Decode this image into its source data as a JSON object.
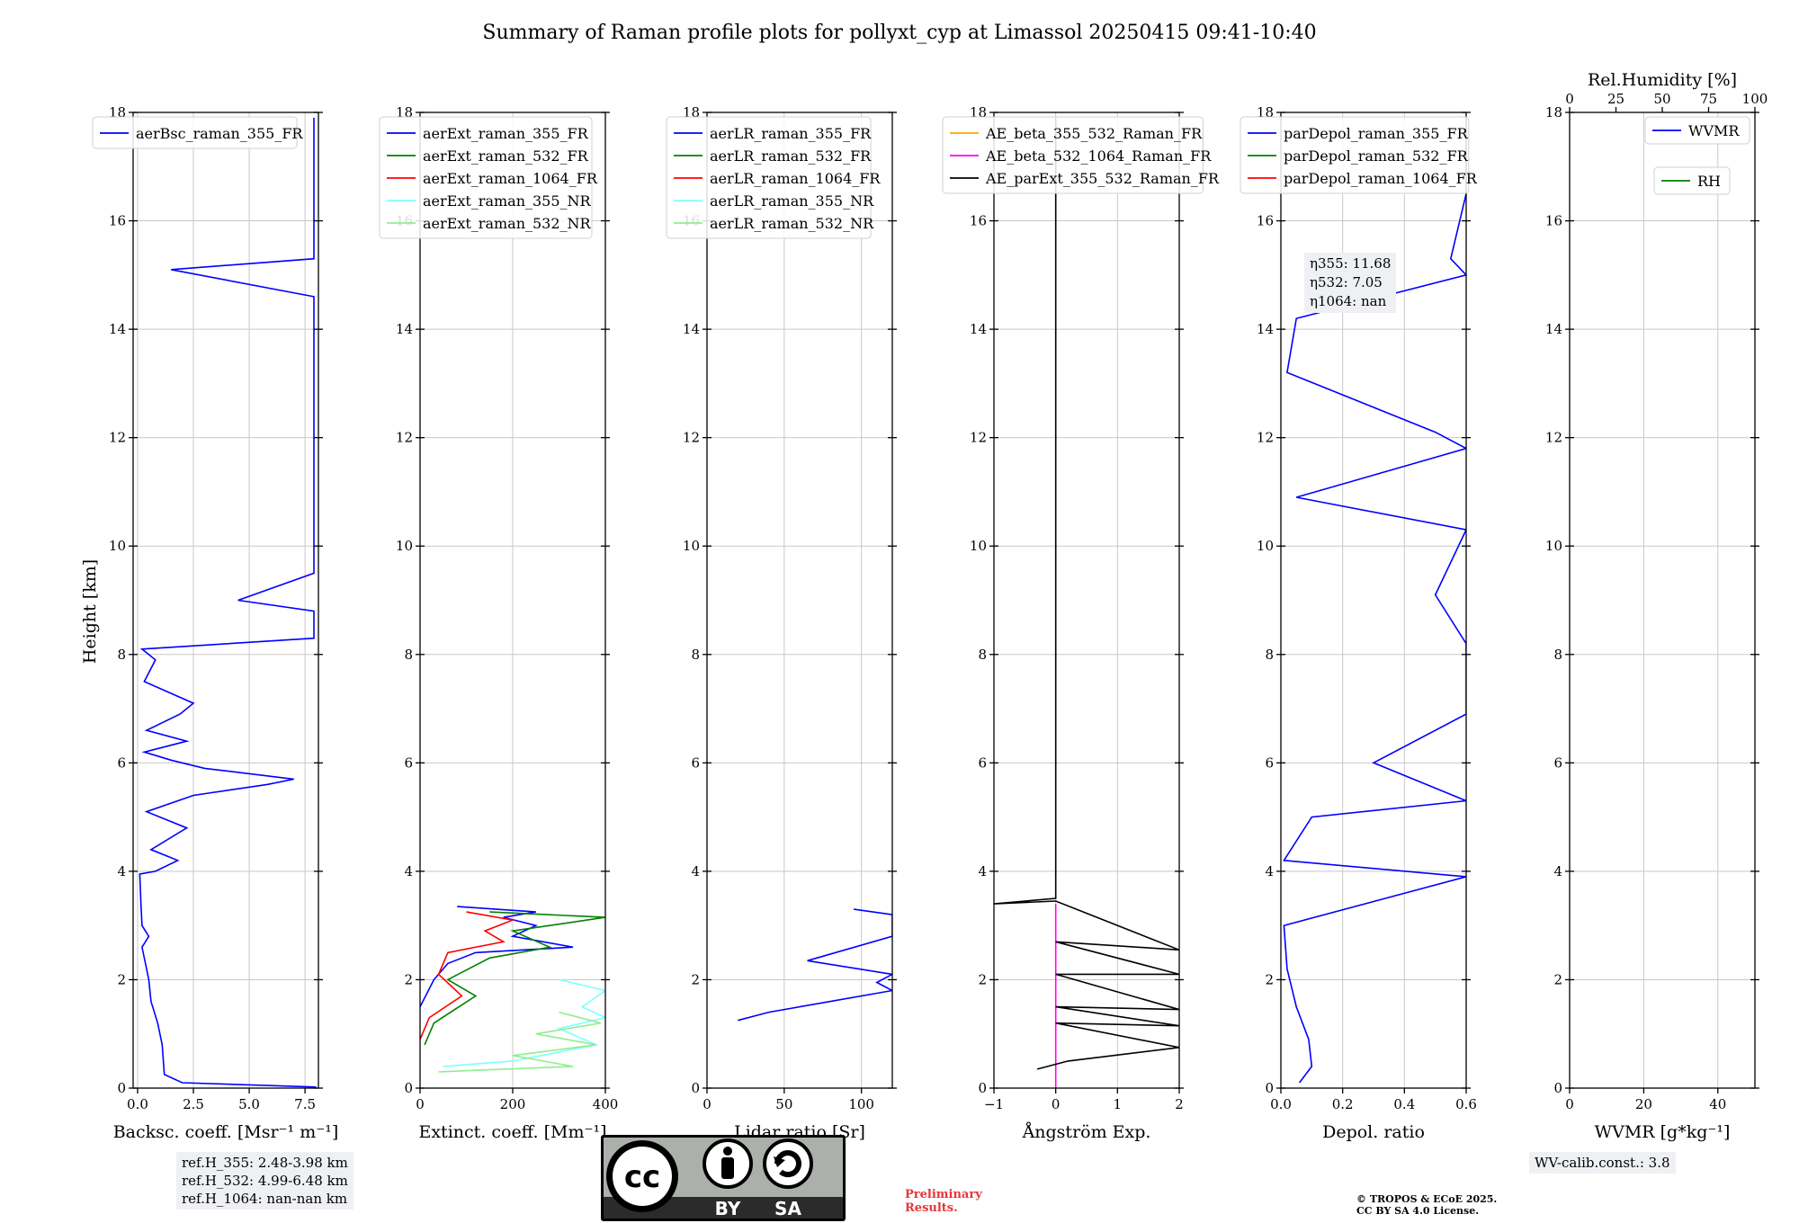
{
  "figure": {
    "title": "Summary of Raman profile plots for pollyxt_cyp at Limassol 20250415 09:41-10:40",
    "ylabel": "Height [km]",
    "ref_heights": [
      "ref.H_355: 2.48-3.98 km",
      "ref.H_532: 4.99-6.48 km",
      "ref.H_1064: nan-nan km"
    ],
    "eta": [
      "η355: 11.68",
      "η532: 7.05",
      "η1064: nan"
    ],
    "wv_calib": "WV-calib.const.: 3.8",
    "preliminary": [
      "Preliminary",
      "Results."
    ],
    "copyright": [
      "© TROPOS & ECoE 2025.",
      "CC BY SA 4.0 License."
    ],
    "license_badge": {
      "cc": "cc",
      "by": "BY",
      "sa": "SA"
    }
  },
  "chart_data": [
    {
      "type": "line",
      "id": "backscatter",
      "xlabel": "Backsc. coeff. [Msr⁻¹ m⁻¹]",
      "ylabel": "Height [km]",
      "xlim": [
        -0.2,
        8.1
      ],
      "ylim": [
        0,
        18
      ],
      "xticks": [
        "0.0",
        "2.5",
        "5.0",
        "7.5"
      ],
      "xtick_values": [
        0,
        2.5,
        5,
        7.5
      ],
      "yticks": [
        "0",
        "2",
        "4",
        "6",
        "8",
        "10",
        "12",
        "14",
        "16",
        "18"
      ],
      "grid": true,
      "legend_position": "upper-left",
      "series": [
        {
          "name": "aerBsc_raman_355_FR",
          "color": "#0000ff",
          "points": [
            [
              8.0,
              0.02
            ],
            [
              2.0,
              0.1
            ],
            [
              1.2,
              0.25
            ],
            [
              1.1,
              0.8
            ],
            [
              0.9,
              1.2
            ],
            [
              0.6,
              1.6
            ],
            [
              0.5,
              2.0
            ],
            [
              0.35,
              2.3
            ],
            [
              0.2,
              2.6
            ],
            [
              0.5,
              2.8
            ],
            [
              0.2,
              3.0
            ],
            [
              0.15,
              3.4
            ],
            [
              0.1,
              3.95
            ],
            [
              0.8,
              4.0
            ],
            [
              1.8,
              4.2
            ],
            [
              0.6,
              4.4
            ],
            [
              2.2,
              4.8
            ],
            [
              0.4,
              5.1
            ],
            [
              2.5,
              5.4
            ],
            [
              5.8,
              5.6
            ],
            [
              7.0,
              5.7
            ],
            [
              3.0,
              5.9
            ],
            [
              1.5,
              6.05
            ],
            [
              0.3,
              6.2
            ],
            [
              2.2,
              6.4
            ],
            [
              0.4,
              6.6
            ],
            [
              1.9,
              6.9
            ],
            [
              2.5,
              7.1
            ],
            [
              0.3,
              7.5
            ],
            [
              0.8,
              7.9
            ],
            [
              0.2,
              8.1
            ],
            [
              7.9,
              8.3
            ],
            [
              7.9,
              8.45
            ],
            [
              7.9,
              8.8
            ],
            [
              4.5,
              9.0
            ],
            [
              7.9,
              9.5
            ],
            [
              7.9,
              9.8
            ],
            [
              7.9,
              10.2
            ],
            [
              7.9,
              10.9
            ],
            [
              7.9,
              11.4
            ],
            [
              7.9,
              11.8
            ],
            [
              7.9,
              12.1
            ],
            [
              7.9,
              12.9
            ],
            [
              7.9,
              14.2
            ],
            [
              7.9,
              14.6
            ],
            [
              1.5,
              15.1
            ],
            [
              7.9,
              15.3
            ],
            [
              7.9,
              15.8
            ],
            [
              7.9,
              17.9
            ]
          ]
        }
      ]
    },
    {
      "type": "line",
      "id": "extinction",
      "xlabel": "Extinct. coeff. [Mm⁻¹]",
      "ylabel": "",
      "xlim": [
        0,
        400
      ],
      "ylim": [
        0,
        18
      ],
      "xticks": [
        "0",
        "200",
        "400"
      ],
      "xtick_values": [
        0,
        200,
        400
      ],
      "yticks": [
        "0",
        "2",
        "4",
        "6",
        "8",
        "10",
        "12",
        "14",
        "16",
        "18"
      ],
      "grid": true,
      "legend_position": "upper-left",
      "series": [
        {
          "name": "aerExt_raman_355_FR",
          "color": "#0000ff",
          "points": [
            [
              0,
              1.5
            ],
            [
              30,
              2.0
            ],
            [
              60,
              2.3
            ],
            [
              120,
              2.5
            ],
            [
              330,
              2.6
            ],
            [
              200,
              2.8
            ],
            [
              250,
              3.0
            ],
            [
              180,
              3.15
            ],
            [
              250,
              3.25
            ],
            [
              80,
              3.35
            ]
          ]
        },
        {
          "name": "aerExt_raman_532_FR",
          "color": "#008000",
          "points": [
            [
              10,
              0.8
            ],
            [
              30,
              1.2
            ],
            [
              120,
              1.7
            ],
            [
              60,
              2.0
            ],
            [
              150,
              2.4
            ],
            [
              280,
              2.6
            ],
            [
              200,
              2.9
            ],
            [
              400,
              3.15
            ],
            [
              150,
              3.25
            ]
          ]
        },
        {
          "name": "aerExt_raman_1064_FR",
          "color": "#ff0000",
          "points": [
            [
              0,
              0.9
            ],
            [
              20,
              1.3
            ],
            [
              90,
              1.7
            ],
            [
              40,
              2.1
            ],
            [
              60,
              2.5
            ],
            [
              180,
              2.7
            ],
            [
              140,
              2.9
            ],
            [
              200,
              3.1
            ],
            [
              100,
              3.25
            ]
          ]
        },
        {
          "name": "aerExt_raman_355_NR",
          "color": "#7fffff",
          "points": [
            [
              50,
              0.4
            ],
            [
              200,
              0.5
            ],
            [
              380,
              0.8
            ],
            [
              300,
              1.1
            ],
            [
              400,
              1.3
            ],
            [
              350,
              1.5
            ],
            [
              400,
              1.8
            ],
            [
              300,
              2.0
            ]
          ]
        },
        {
          "name": "aerExt_raman_532_NR",
          "color": "#90ee90",
          "points": [
            [
              40,
              0.3
            ],
            [
              330,
              0.4
            ],
            [
              200,
              0.6
            ],
            [
              380,
              0.8
            ],
            [
              250,
              1.0
            ],
            [
              390,
              1.2
            ],
            [
              300,
              1.4
            ]
          ]
        }
      ]
    },
    {
      "type": "line",
      "id": "lidar_ratio",
      "xlabel": "Lidar ratio [Sr]",
      "ylabel": "",
      "xlim": [
        0,
        120
      ],
      "ylim": [
        0,
        18
      ],
      "xticks": [
        "0",
        "50",
        "100"
      ],
      "xtick_values": [
        0,
        50,
        100
      ],
      "yticks": [
        "0",
        "2",
        "4",
        "6",
        "8",
        "10",
        "12",
        "14",
        "16",
        "18"
      ],
      "grid": true,
      "legend_position": "upper-left",
      "series": [
        {
          "name": "aerLR_raman_355_FR",
          "color": "#0000ff",
          "points": [
            [
              20,
              1.25
            ],
            [
              40,
              1.4
            ],
            [
              80,
              1.6
            ],
            [
              120,
              1.8
            ],
            [
              110,
              1.95
            ],
            [
              120,
              2.1
            ],
            [
              65,
              2.35
            ],
            [
              120,
              2.8
            ],
            [
              120,
              3.0
            ],
            [
              120,
              3.2
            ],
            [
              95,
              3.3
            ]
          ]
        },
        {
          "name": "aerLR_raman_532_FR",
          "color": "#008000",
          "points": []
        },
        {
          "name": "aerLR_raman_1064_FR",
          "color": "#ff0000",
          "points": []
        },
        {
          "name": "aerLR_raman_355_NR",
          "color": "#7fffff",
          "points": []
        },
        {
          "name": "aerLR_raman_532_NR",
          "color": "#90ee90",
          "points": []
        }
      ]
    },
    {
      "type": "line",
      "id": "angstrom",
      "xlabel": "Ångström Exp.",
      "ylabel": "",
      "xlim": [
        -1,
        2
      ],
      "ylim": [
        0,
        18
      ],
      "xticks": [
        "−1",
        "0",
        "1",
        "2"
      ],
      "xtick_values": [
        -1,
        0,
        1,
        2
      ],
      "yticks": [
        "0",
        "2",
        "4",
        "6",
        "8",
        "10",
        "12",
        "14",
        "16",
        "18"
      ],
      "grid": true,
      "legend_position": "upper-left",
      "series": [
        {
          "name": "AE_beta_355_532_Raman_FR",
          "color": "#ffa500",
          "points": []
        },
        {
          "name": "AE_beta_532_1064_Raman_FR",
          "color": "#ff00ff",
          "points": [
            [
              0,
              0
            ],
            [
              0,
              3.4
            ]
          ]
        },
        {
          "name": "AE_parExt_355_532_Raman_FR",
          "color": "#000000",
          "points": [
            [
              -0.3,
              0.35
            ],
            [
              0.2,
              0.5
            ],
            [
              2.0,
              0.75
            ],
            [
              0,
              1.2
            ],
            [
              2.0,
              1.15
            ],
            [
              0,
              1.5
            ],
            [
              2.0,
              1.45
            ],
            [
              0,
              2.1
            ],
            [
              2.0,
              2.1
            ],
            [
              0,
              2.7
            ],
            [
              2.0,
              2.55
            ],
            [
              0,
              3.45
            ],
            [
              -1.0,
              3.4
            ],
            [
              0,
              3.5
            ],
            [
              0,
              17.9
            ]
          ]
        }
      ]
    },
    {
      "type": "line",
      "id": "depolarization",
      "xlabel": "Depol. ratio",
      "ylabel": "",
      "xlim": [
        0,
        0.6
      ],
      "ylim": [
        0,
        18
      ],
      "xticks": [
        "0.0",
        "0.2",
        "0.4",
        "0.6"
      ],
      "xtick_values": [
        0,
        0.2,
        0.4,
        0.6
      ],
      "yticks": [
        "0",
        "2",
        "4",
        "6",
        "8",
        "10",
        "12",
        "14",
        "16",
        "18"
      ],
      "grid": true,
      "legend_position": "upper-left",
      "series": [
        {
          "name": "parDepol_raman_355_FR",
          "color": "#0000ff",
          "points": [
            [
              0.06,
              0.1
            ],
            [
              0.1,
              0.4
            ],
            [
              0.09,
              0.9
            ],
            [
              0.05,
              1.5
            ],
            [
              0.02,
              2.2
            ],
            [
              0.01,
              3.0
            ],
            [
              0.6,
              3.9
            ],
            [
              0.01,
              4.2
            ],
            [
              0.1,
              5.0
            ],
            [
              0.6,
              5.3
            ],
            [
              0.3,
              6.0
            ],
            [
              0.6,
              6.9
            ],
            [
              0.6,
              7.2
            ],
            [
              0.6,
              8.0
            ],
            [
              0.6,
              8.2
            ],
            [
              0.5,
              9.1
            ],
            [
              0.6,
              10.3
            ],
            [
              0.05,
              10.9
            ],
            [
              0.6,
              11.8
            ],
            [
              0.5,
              12.1
            ],
            [
              0.02,
              13.2
            ],
            [
              0.05,
              14.2
            ],
            [
              0.6,
              15.0
            ],
            [
              0.55,
              15.3
            ],
            [
              0.6,
              16.5
            ],
            [
              0.6,
              17.3
            ],
            [
              0.6,
              17.9
            ]
          ]
        },
        {
          "name": "parDepol_raman_532_FR",
          "color": "#008000",
          "points": []
        },
        {
          "name": "parDepol_raman_1064_FR",
          "color": "#ff0000",
          "points": []
        }
      ]
    },
    {
      "type": "line",
      "id": "water_vapor",
      "xlabel": "WVMR [g*kg⁻¹]",
      "ylabel": "",
      "xlim": [
        0,
        50
      ],
      "ylim": [
        0,
        18
      ],
      "xticks": [
        "0",
        "20",
        "40"
      ],
      "xtick_values": [
        0,
        20,
        40
      ],
      "yticks": [
        "0",
        "2",
        "4",
        "6",
        "8",
        "10",
        "12",
        "14",
        "16",
        "18"
      ],
      "top_axis_label": "Rel.Humidity [%]",
      "top_xlim": [
        0,
        100
      ],
      "top_xticks": [
        "0",
        "25",
        "50",
        "75",
        "100"
      ],
      "top_xtick_values": [
        0,
        25,
        50,
        75,
        100
      ],
      "grid": true,
      "legend_position": "upper-right",
      "series": [
        {
          "name": "WVMR",
          "color": "#0000ff",
          "points": []
        },
        {
          "name": "RH",
          "color": "#008000",
          "points": []
        }
      ]
    }
  ]
}
